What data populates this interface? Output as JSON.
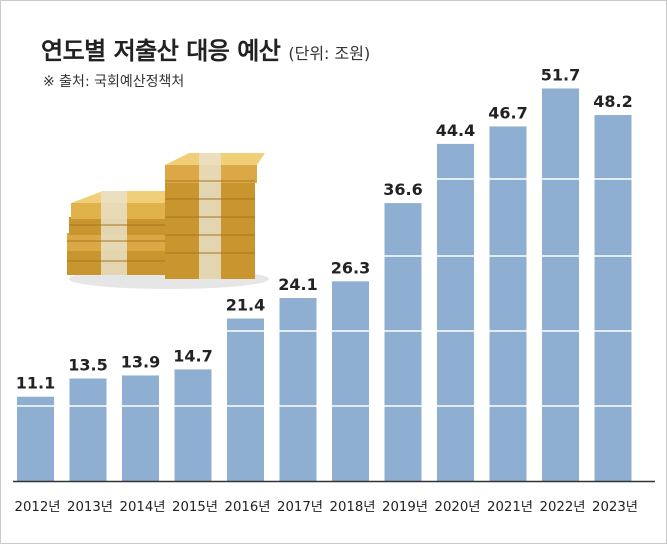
{
  "header": {
    "title": "연도별 저출산 대응 예산",
    "unit": "(단위: 조원)",
    "source": "※ 출처: 국회예산정책처"
  },
  "illustration": {
    "icon": "money-stack-icon"
  },
  "colors": {
    "bar": "#8eafd2",
    "axis": "#333333",
    "text": "#222222",
    "gold": "#e2b24a",
    "gold_dark": "#b8862a"
  },
  "chart_data": {
    "type": "bar",
    "title": "연도별 저출산 대응 예산",
    "ylabel": "조원",
    "xlabel": "",
    "grid": true,
    "ylim": [
      0,
      54
    ],
    "categories": [
      "2012년",
      "2013년",
      "2014년",
      "2015년",
      "2016년",
      "2017년",
      "2018년",
      "2019년",
      "2020년",
      "2021년",
      "2022년",
      "2023년"
    ],
    "values": [
      11.1,
      13.5,
      13.9,
      14.7,
      21.4,
      24.1,
      26.3,
      36.6,
      44.4,
      46.7,
      51.7,
      48.2
    ],
    "value_labels": [
      "11.1",
      "13.5",
      "13.9",
      "14.7",
      "21.4",
      "24.1",
      "26.3",
      "36.6",
      "44.4",
      "46.7",
      "51.7",
      "48.2"
    ]
  }
}
